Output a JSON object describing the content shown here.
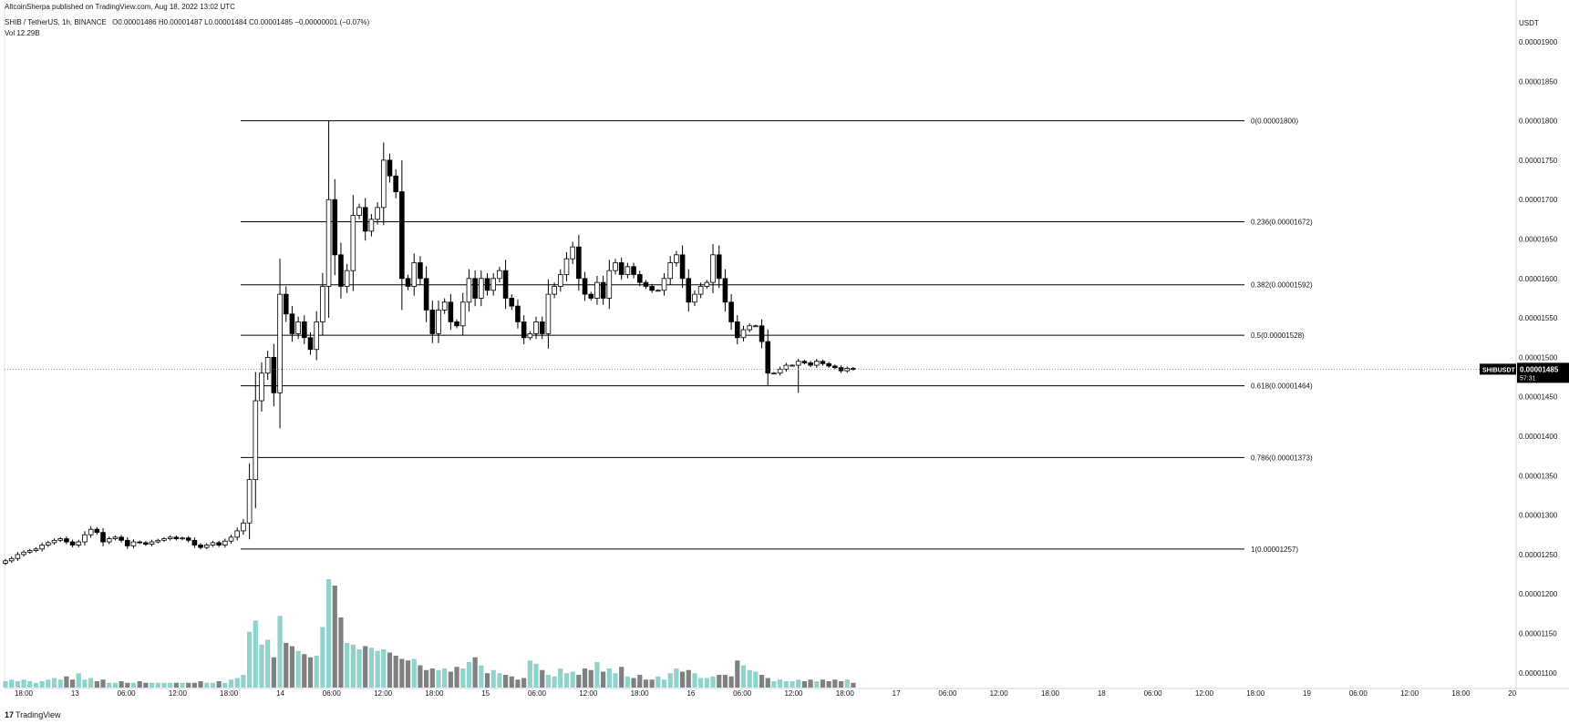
{
  "header": {
    "published": "AltcoinSherpa published on TradingView.com, Aug 18, 2022 13:02 UTC",
    "symbol": "SHIB / TetherUS, 1h, BINANCE",
    "ohlc": "O0.00001486 H0.00001487 L0.00001484 C0.00001485 −0.00000001 (−0.07%)",
    "volume": "Vol 12.29B"
  },
  "brand": {
    "logo": "17",
    "name": "TradingView"
  },
  "colors": {
    "bull": "#ffffff",
    "bear": "#000000",
    "bull_volume": "#8fd3cc",
    "bear_volume": "#808080",
    "fib_line": "#000000",
    "price_tag": "#000000"
  },
  "chart_data": {
    "type": "candlestick",
    "y_axis_unit": "USDT",
    "y_ticks": [
      "0.00001900",
      "0.00001850",
      "0.00001800",
      "0.00001750",
      "0.00001700",
      "0.00001650",
      "0.00001600",
      "0.00001550",
      "0.00001500",
      "0.00001450",
      "0.00001400",
      "0.00001350",
      "0.00001300",
      "0.00001250",
      "0.00001200",
      "0.00001150",
      "0.00001100"
    ],
    "ylim": [
      1.077e-05,
      1.925e-05
    ],
    "x_ticks": [
      "18:00",
      "13",
      "06:00",
      "12:00",
      "18:00",
      "14",
      "06:00",
      "12:00",
      "18:00",
      "15",
      "06:00",
      "12:00",
      "18:00",
      "16",
      "06:00",
      "12:00",
      "18:00",
      "17",
      "06:00",
      "12:00",
      "18:00",
      "18",
      "06:00",
      "12:00",
      "18:00",
      "19",
      "06:00",
      "12:00",
      "18:00",
      "20"
    ],
    "fib_levels": [
      {
        "label": "0(0.00001800)",
        "value": 1.8e-05
      },
      {
        "label": "0.236(0.00001672)",
        "value": 1.672e-05
      },
      {
        "label": "0.382(0.00001592)",
        "value": 1.592e-05
      },
      {
        "label": "0.5(0.00001528)",
        "value": 1.528e-05
      },
      {
        "label": "0.618(0.00001464)",
        "value": 1.464e-05
      },
      {
        "label": "0.786(0.00001373)",
        "value": 1.373e-05
      },
      {
        "label": "1(0.00001257)",
        "value": 1.257e-05
      }
    ],
    "last_price": {
      "symbol": "SHIBUSDT",
      "value": "0.00001485",
      "countdown": "57:31",
      "price": 1.485e-05
    },
    "close": [
      1242,
      1245,
      1250,
      1253,
      1255,
      1257,
      1262,
      1265,
      1268,
      1270,
      1266,
      1262,
      1266,
      1275,
      1282,
      1278,
      1266,
      1270,
      1272,
      1268,
      1261,
      1266,
      1265,
      1263,
      1266,
      1268,
      1270,
      1272,
      1270,
      1271,
      1268,
      1262,
      1259,
      1262,
      1265,
      1262,
      1267,
      1272,
      1280,
      1290,
      1345,
      1445,
      1480,
      1500,
      1455,
      1580,
      1555,
      1530,
      1545,
      1525,
      1510,
      1545,
      1590,
      1700,
      1630,
      1590,
      1610,
      1680,
      1690,
      1660,
      1675,
      1690,
      1750,
      1730,
      1710,
      1600,
      1590,
      1620,
      1600,
      1560,
      1530,
      1560,
      1570,
      1545,
      1540,
      1570,
      1600,
      1575,
      1600,
      1585,
      1600,
      1610,
      1575,
      1565,
      1545,
      1525,
      1530,
      1545,
      1530,
      1580,
      1590,
      1605,
      1625,
      1640,
      1600,
      1580,
      1575,
      1595,
      1575,
      1610,
      1620,
      1605,
      1615,
      1605,
      1595,
      1590,
      1585,
      1585,
      1600,
      1620,
      1630,
      1600,
      1570,
      1580,
      1590,
      1595,
      1630,
      1600,
      1570,
      1545,
      1525,
      1535,
      1540,
      1540,
      1520,
      1480,
      1480,
      1485,
      1490,
      1490,
      1495,
      1493,
      1490,
      1495,
      1492,
      1489,
      1487,
      1483,
      1486,
      1485
    ],
    "volume": [
      4,
      5,
      4,
      5,
      4,
      3,
      4,
      5,
      6,
      5,
      7,
      5,
      9,
      5,
      6,
      4,
      5,
      3,
      3,
      4,
      3,
      3,
      4,
      3,
      3,
      3,
      3,
      3,
      3,
      3,
      3,
      3,
      4,
      3,
      3,
      4,
      3,
      5,
      6,
      8,
      35,
      42,
      27,
      30,
      19,
      45,
      28,
      26,
      23,
      21,
      19,
      20,
      38,
      68,
      64,
      44,
      28,
      27,
      24,
      26,
      25,
      23,
      24,
      22,
      20,
      18,
      17,
      18,
      14,
      11,
      12,
      11,
      12,
      10,
      13,
      12,
      16,
      19,
      14,
      9,
      11,
      9,
      8,
      7,
      5,
      6,
      17,
      15,
      11,
      8,
      7,
      12,
      9,
      10,
      8,
      12,
      11,
      16,
      10,
      12,
      9,
      13,
      7,
      6,
      8,
      5,
      5,
      7,
      5,
      9,
      12,
      10,
      11,
      9,
      6,
      6,
      7,
      8,
      8,
      7,
      17,
      14,
      11,
      10,
      8,
      6,
      4,
      5,
      4,
      4,
      5,
      4,
      5,
      4,
      5,
      4,
      5,
      4,
      5,
      3
    ]
  }
}
